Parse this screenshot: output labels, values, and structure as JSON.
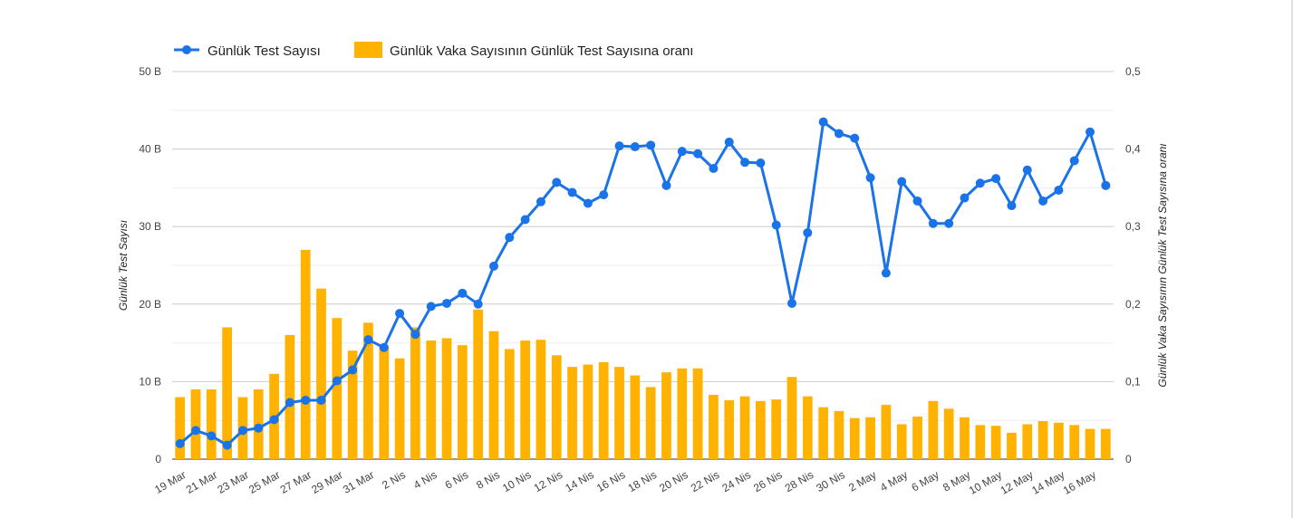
{
  "chart_data": {
    "type": "bar+line",
    "categories": [
      "19 Mar",
      "20 Mar",
      "21 Mar",
      "22 Mar",
      "23 Mar",
      "24 Mar",
      "25 Mar",
      "26 Mar",
      "27 Mar",
      "28 Mar",
      "29 Mar",
      "30 Mar",
      "31 Mar",
      "1 Nis",
      "2 Nis",
      "3 Nis",
      "4 Nis",
      "5 Nis",
      "6 Nis",
      "7 Nis",
      "8 Nis",
      "9 Nis",
      "10 Nis",
      "11 Nis",
      "12 Nis",
      "13 Nis",
      "14 Nis",
      "15 Nis",
      "16 Nis",
      "17 Nis",
      "18 Nis",
      "19 Nis",
      "20 Nis",
      "21 Nis",
      "22 Nis",
      "23 Nis",
      "24 Nis",
      "25 Nis",
      "26 Nis",
      "27 Nis",
      "28 Nis",
      "29 Nis",
      "30 Nis",
      "1 May",
      "2 May",
      "3 May",
      "4 May",
      "5 May",
      "6 May",
      "7 May",
      "8 May",
      "9 May",
      "10 May",
      "11 May",
      "12 May",
      "13 May",
      "14 May",
      "15 May",
      "16 May",
      "17 May"
    ],
    "x_tick_labels": [
      "19 Mar",
      "21 Mar",
      "23 Mar",
      "25 Mar",
      "27 Mar",
      "29 Mar",
      "31 Mar",
      "2 Nis",
      "4 Nis",
      "6 Nis",
      "8 Nis",
      "10 Nis",
      "12 Nis",
      "14 Nis",
      "16 Nis",
      "18 Nis",
      "20 Nis",
      "22 Nis",
      "24 Nis",
      "26 Nis",
      "28 Nis",
      "30 Nis",
      "2 May",
      "4 May",
      "6 May",
      "8 May",
      "10 May",
      "12 May",
      "14 May",
      "16 May"
    ],
    "series": [
      {
        "name": "Günlük Test Sayısı",
        "type": "line",
        "axis": "left",
        "color": "#1a73e8",
        "values": [
          2.0,
          3.7,
          3.0,
          1.8,
          3.7,
          4.0,
          5.1,
          7.3,
          7.6,
          7.6,
          10.1,
          11.5,
          15.4,
          14.4,
          18.8,
          16.1,
          19.7,
          20.1,
          21.4,
          20.0,
          24.9,
          28.6,
          30.9,
          33.2,
          35.7,
          34.4,
          33.0,
          34.1,
          40.4,
          40.3,
          40.5,
          35.3,
          39.7,
          39.4,
          37.5,
          40.9,
          38.3,
          38.2,
          30.2,
          20.1,
          29.2,
          43.5,
          42.0,
          41.4,
          36.3,
          24.0,
          35.8,
          33.3,
          30.4,
          30.4,
          33.7,
          35.6,
          36.2,
          32.7,
          37.3,
          33.3,
          34.7,
          38.5,
          42.2,
          35.3
        ]
      },
      {
        "name": "Günlük Vaka Sayısının Günlük Test Sayısına oranı",
        "type": "bar",
        "axis": "right",
        "color": "#ffb300",
        "values": [
          0.08,
          0.09,
          0.09,
          0.17,
          0.08,
          0.09,
          0.11,
          0.16,
          0.27,
          0.22,
          0.182,
          0.14,
          0.176,
          0.145,
          0.13,
          0.17,
          0.153,
          0.156,
          0.147,
          0.193,
          0.165,
          0.142,
          0.153,
          0.154,
          0.134,
          0.119,
          0.122,
          0.125,
          0.119,
          0.108,
          0.093,
          0.112,
          0.117,
          0.117,
          0.083,
          0.076,
          0.081,
          0.075,
          0.077,
          0.106,
          0.081,
          0.067,
          0.062,
          0.053,
          0.054,
          0.07,
          0.045,
          0.055,
          0.075,
          0.065,
          0.054,
          0.044,
          0.043,
          0.034,
          0.045,
          0.049,
          0.047,
          0.044,
          0.039,
          0.039
        ]
      }
    ],
    "y_left": {
      "label": "Günlük Test Sayısı",
      "range": [
        0,
        50
      ],
      "ticks": [
        "0",
        "10 B",
        "20 B",
        "30 B",
        "40 B",
        "50 B"
      ]
    },
    "y_right": {
      "label": "Günlük Vaka Sayısının Günlük Test Sayısına oranı",
      "range": [
        0,
        0.5
      ],
      "ticks": [
        "0",
        "0,1",
        "0,2",
        "0,3",
        "0,4",
        "0,5"
      ]
    },
    "grid": true,
    "legend_position": "top-left"
  }
}
